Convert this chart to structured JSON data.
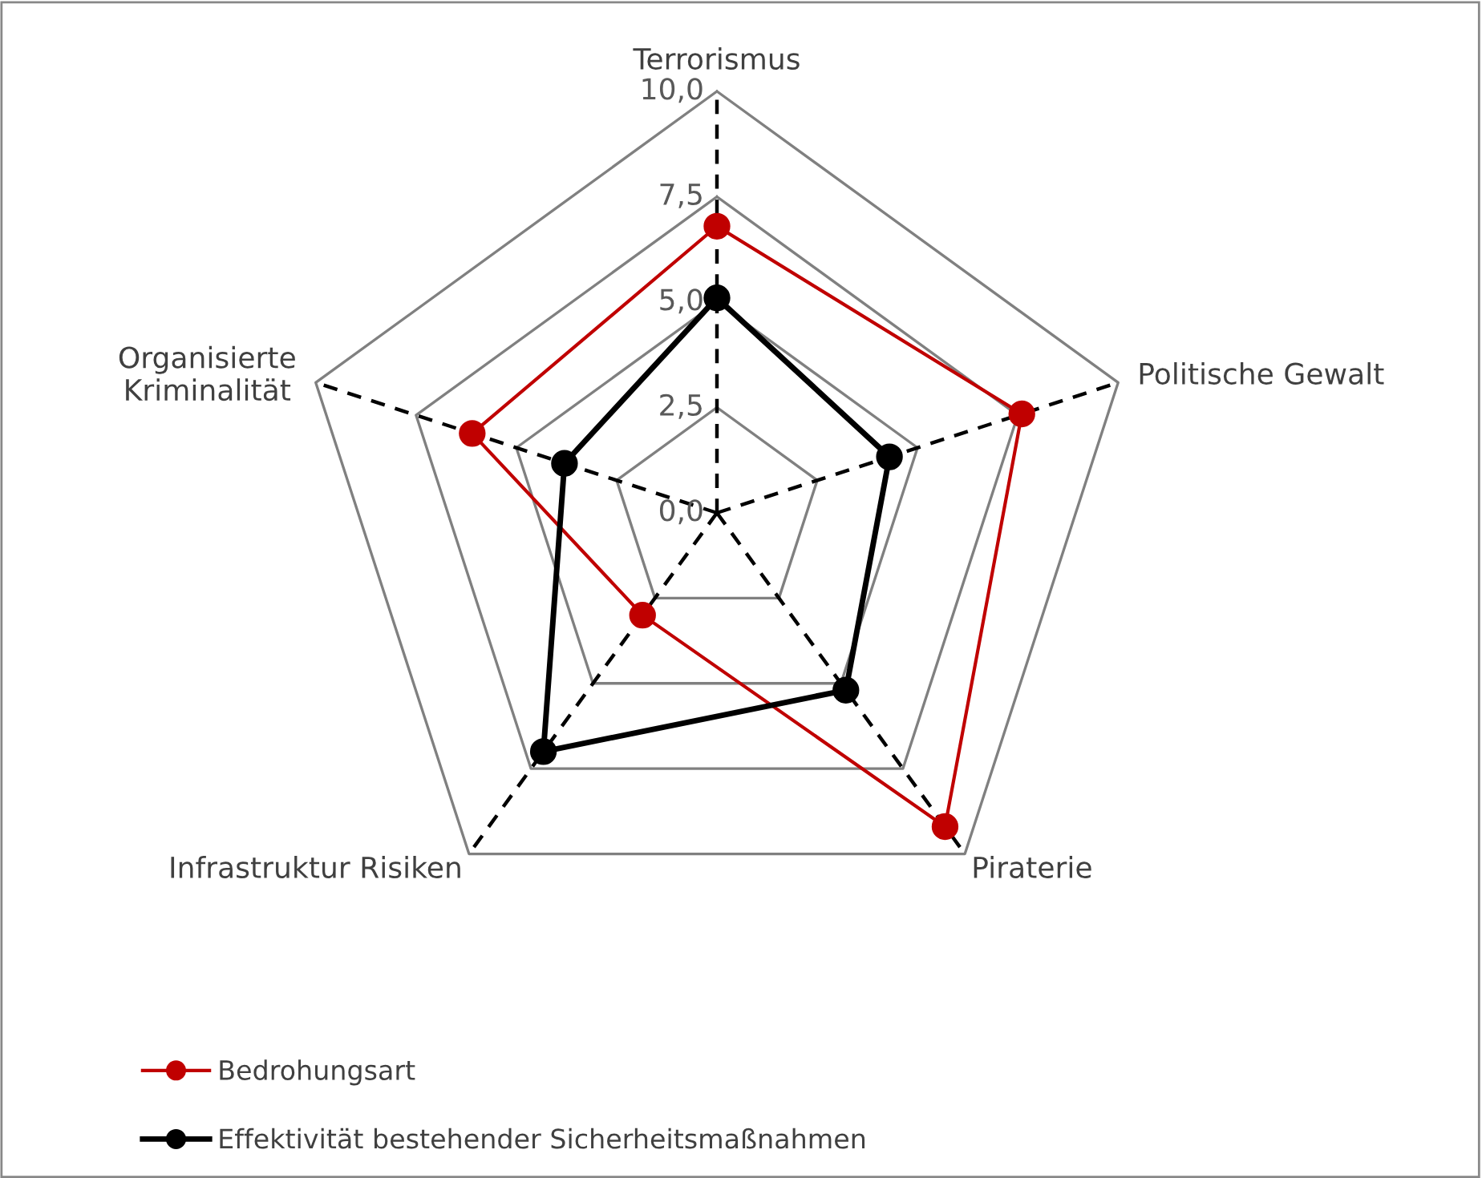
{
  "chart_data": {
    "type": "radar",
    "categories": [
      "Terrorismus",
      "Politische Gewalt",
      "Piraterie",
      "Infrastruktur Risiken",
      "Organisierte\nKriminalität"
    ],
    "series": [
      {
        "name": "Bedrohungsart",
        "color": "#c00000",
        "values": [
          6.8,
          7.6,
          9.2,
          3.0,
          6.1
        ]
      },
      {
        "name": "Effektivität bestehender Sicherheitsmaßnahmen",
        "color": "#000000",
        "values": [
          5.1,
          4.3,
          5.2,
          7.0,
          3.8
        ]
      }
    ],
    "ylim": [
      0,
      10
    ],
    "yticks": [
      {
        "value": 0,
        "label": "0,0"
      },
      {
        "value": 2.5,
        "label": "2,5"
      },
      {
        "value": 5,
        "label": "5,0"
      },
      {
        "value": 7.5,
        "label": "7,5"
      },
      {
        "value": 10,
        "label": "10,0"
      }
    ],
    "grid": true,
    "legend": "bottom left",
    "marker": "circle",
    "line_style": "solid"
  }
}
